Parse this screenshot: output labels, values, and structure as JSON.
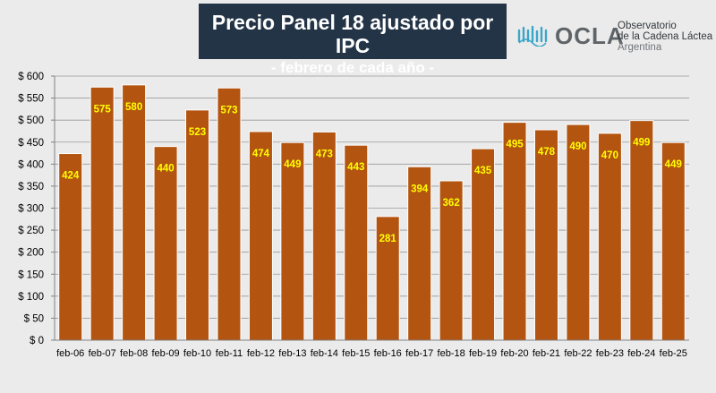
{
  "header": {
    "title": "Precio Panel 18 ajustado por IPC",
    "subtitle": "- febrero de cada año -"
  },
  "logo": {
    "name": "OCLA",
    "line1": "Observatorio",
    "line2": "de la Cadena Láctea",
    "line3": "Argentina",
    "color": "#5f6468",
    "wave_color": "#3aa6c9"
  },
  "chart_data": {
    "type": "bar",
    "title": "Precio Panel 18 ajustado por IPC",
    "subtitle": "- febrero de cada año -",
    "categories": [
      "feb-06",
      "feb-07",
      "feb-08",
      "feb-09",
      "feb-10",
      "feb-11",
      "feb-12",
      "feb-13",
      "feb-14",
      "feb-15",
      "feb-16",
      "feb-17",
      "feb-18",
      "feb-19",
      "feb-20",
      "feb-21",
      "feb-22",
      "feb-23",
      "feb-24",
      "feb-25"
    ],
    "values": [
      424,
      575,
      580,
      440,
      523,
      573,
      474,
      449,
      473,
      443,
      281,
      394,
      362,
      435,
      495,
      478,
      490,
      470,
      499,
      449
    ],
    "ylim": [
      0,
      600
    ],
    "yticks": [
      0,
      50,
      100,
      150,
      200,
      250,
      300,
      350,
      400,
      450,
      500,
      550,
      600
    ],
    "ytick_labels": [
      "$ 0",
      "$ 50",
      "$ 100",
      "$ 150",
      "$ 200",
      "$ 250",
      "$ 300",
      "$ 350",
      "$ 400",
      "$ 450",
      "$ 500",
      "$ 550",
      "$ 600"
    ],
    "xlabel": "",
    "ylabel": "",
    "grid": true,
    "bar_color": "#b35411",
    "label_color": "#ffff00"
  }
}
